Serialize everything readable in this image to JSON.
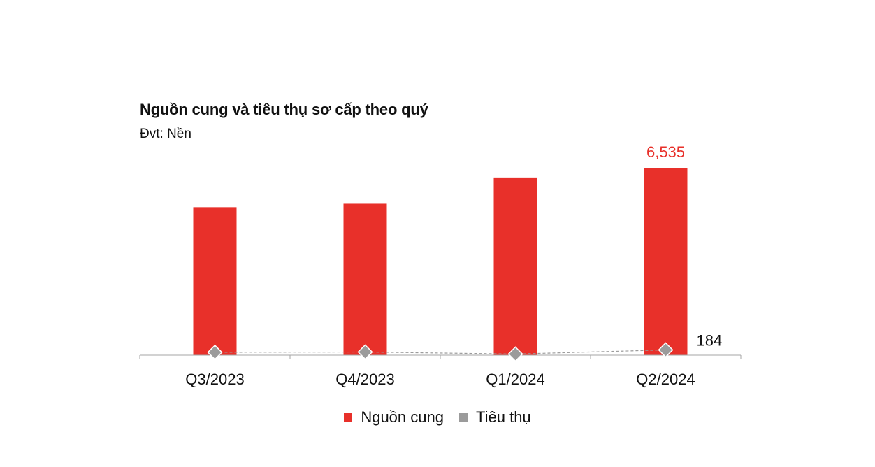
{
  "chart_data": {
    "type": "bar",
    "title": "Nguồn cung và tiêu thụ sơ cấp theo quý",
    "subtitle": "Đvt: Nền",
    "categories": [
      "Q3/2023",
      "Q4/2023",
      "Q1/2024",
      "Q2/2024"
    ],
    "series": [
      {
        "name": "Nguồn cung",
        "type": "bar",
        "values": [
          5180,
          5300,
          6220,
          6535
        ],
        "data_labels": [
          "",
          "",
          "",
          "6,535"
        ],
        "color": "#e8302a",
        "label_color": "#e8302a"
      },
      {
        "name": "Tiêu thụ",
        "type": "line",
        "values": [
          100,
          110,
          40,
          184
        ],
        "data_labels": [
          "",
          "",
          "",
          "184"
        ],
        "color": "#9b9b9b",
        "label_color": "#111111"
      }
    ],
    "ylim": [
      0,
      6535
    ],
    "grid": false,
    "legend": "bottom"
  }
}
